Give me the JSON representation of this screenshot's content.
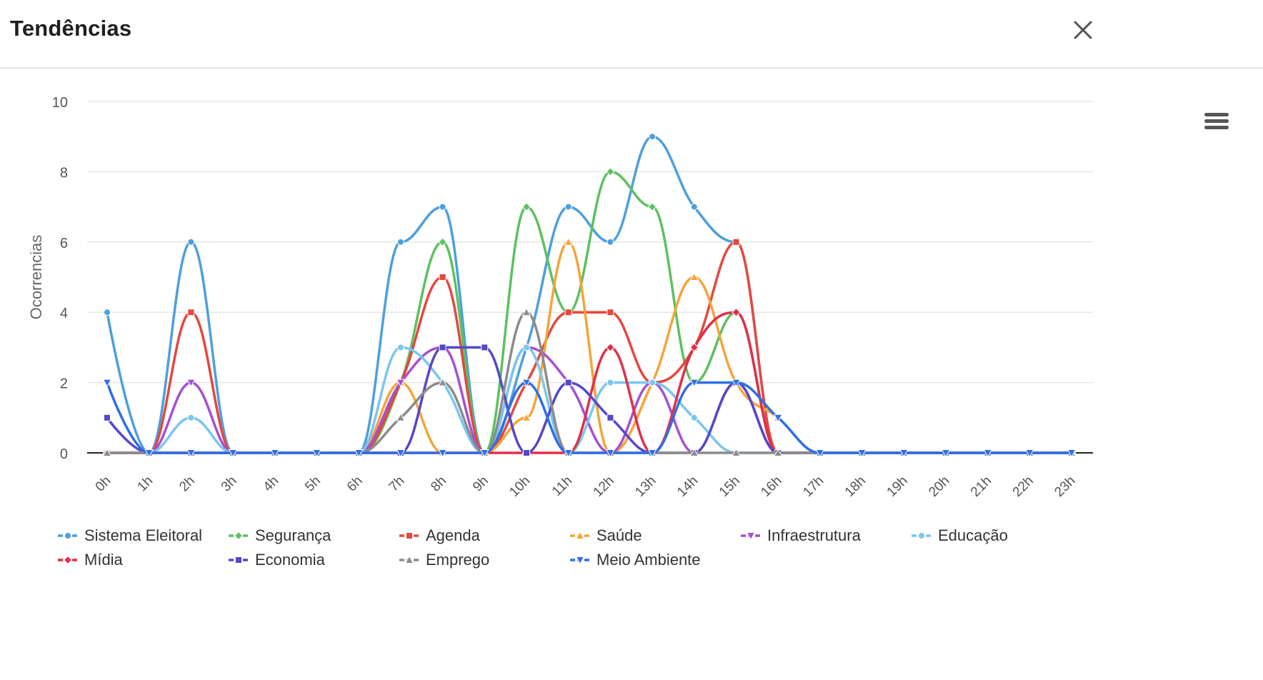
{
  "dialog": {
    "title": "Tendências"
  },
  "icons": {
    "close": "close-icon",
    "menu": "hamburger-menu-icon"
  },
  "chart_data": {
    "type": "line",
    "smooth": true,
    "title": "",
    "xlabel": "",
    "ylabel": "Ocorrencias",
    "ylim": [
      0,
      10
    ],
    "yticks": [
      0,
      2,
      4,
      6,
      8,
      10
    ],
    "grid": true,
    "legend_position": "bottom",
    "categories": [
      "0h",
      "1h",
      "2h",
      "3h",
      "4h",
      "5h",
      "6h",
      "7h",
      "8h",
      "9h",
      "10h",
      "11h",
      "12h",
      "13h",
      "14h",
      "15h",
      "16h",
      "17h",
      "18h",
      "19h",
      "20h",
      "21h",
      "22h",
      "23h"
    ],
    "series": [
      {
        "name": "Sistema Eleitoral",
        "color": "#4d9fdd",
        "marker": "circle",
        "values": [
          4,
          0,
          6,
          0,
          0,
          0,
          0,
          6,
          7,
          0,
          3,
          7,
          6,
          9,
          7,
          6,
          0,
          0,
          0,
          0,
          0,
          0,
          0,
          0
        ]
      },
      {
        "name": "Segurança",
        "color": "#5cc15f",
        "marker": "diamond",
        "values": [
          0,
          0,
          0,
          0,
          0,
          0,
          0,
          2,
          6,
          0,
          7,
          4,
          8,
          7,
          2,
          4,
          0,
          0,
          0,
          0,
          0,
          0,
          0,
          0
        ]
      },
      {
        "name": "Agenda",
        "color": "#e5473f",
        "marker": "square",
        "values": [
          0,
          0,
          4,
          0,
          0,
          0,
          0,
          2,
          5,
          0,
          2,
          4,
          4,
          2,
          3,
          6,
          0,
          0,
          0,
          0,
          0,
          0,
          0,
          0
        ]
      },
      {
        "name": "Saúde",
        "color": "#f4a43a",
        "marker": "triangle",
        "values": [
          0,
          0,
          0,
          0,
          0,
          0,
          0,
          2,
          0,
          0,
          1,
          6,
          0,
          2,
          5,
          2,
          1,
          0,
          0,
          0,
          0,
          0,
          0,
          0
        ]
      },
      {
        "name": "Infraestrutura",
        "color": "#a550d1",
        "marker": "triangle-down",
        "values": [
          0,
          0,
          2,
          0,
          0,
          0,
          0,
          2,
          3,
          0,
          3,
          2,
          0,
          2,
          0,
          2,
          0,
          0,
          0,
          0,
          0,
          0,
          0,
          0
        ]
      },
      {
        "name": "Educação",
        "color": "#79c6ef",
        "marker": "circle",
        "values": [
          0,
          0,
          1,
          0,
          0,
          0,
          0,
          3,
          2,
          0,
          3,
          0,
          2,
          2,
          1,
          0,
          0,
          0,
          0,
          0,
          0,
          0,
          0,
          0
        ]
      },
      {
        "name": "Mídia",
        "color": "#e02f4b",
        "marker": "diamond",
        "values": [
          0,
          0,
          0,
          0,
          0,
          0,
          0,
          0,
          0,
          0,
          0,
          0,
          3,
          0,
          3,
          4,
          0,
          0,
          0,
          0,
          0,
          0,
          0,
          0
        ]
      },
      {
        "name": "Economia",
        "color": "#5548c8",
        "marker": "square",
        "values": [
          1,
          0,
          0,
          0,
          0,
          0,
          0,
          0,
          3,
          3,
          0,
          2,
          1,
          0,
          0,
          2,
          0,
          0,
          0,
          0,
          0,
          0,
          0,
          0
        ]
      },
      {
        "name": "Emprego",
        "color": "#8c8c8c",
        "marker": "triangle",
        "values": [
          0,
          0,
          0,
          0,
          0,
          0,
          0,
          1,
          2,
          0,
          4,
          0,
          0,
          0,
          0,
          0,
          0,
          0,
          0,
          0,
          0,
          0,
          0,
          0
        ]
      },
      {
        "name": "Meio Ambiente",
        "color": "#2f6fe5",
        "marker": "triangle-down",
        "values": [
          2,
          0,
          0,
          0,
          0,
          0,
          0,
          0,
          0,
          0,
          2,
          0,
          0,
          0,
          2,
          2,
          1,
          0,
          0,
          0,
          0,
          0,
          0,
          0
        ]
      }
    ]
  }
}
